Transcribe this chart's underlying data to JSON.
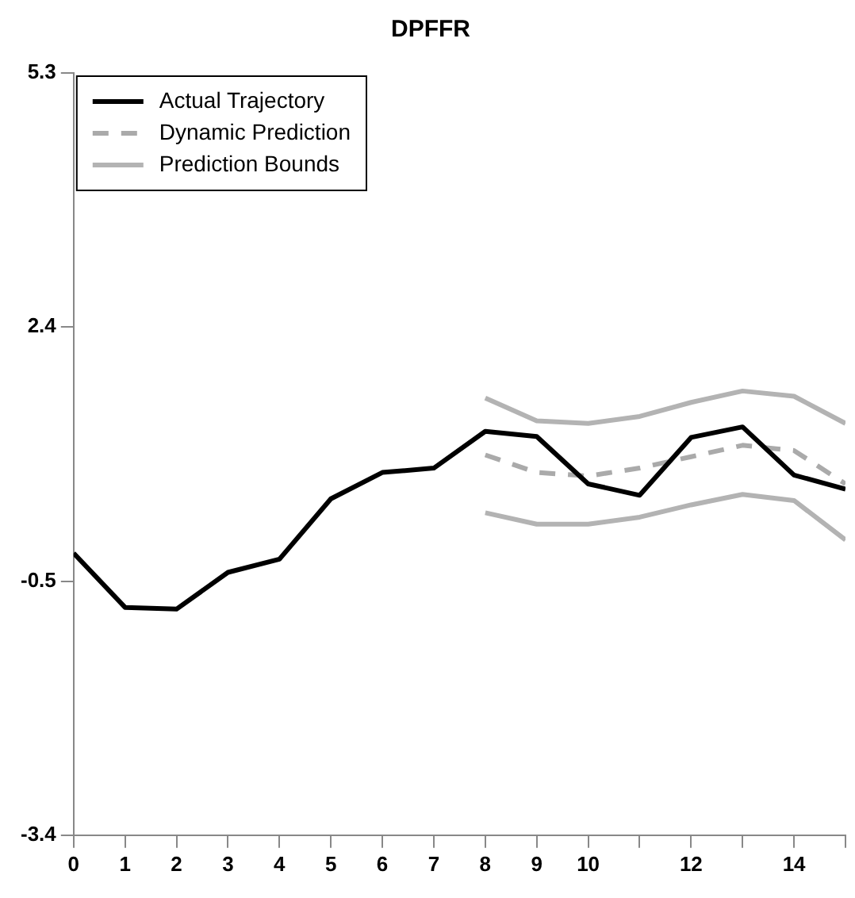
{
  "chart_data": {
    "type": "line",
    "title": "DPFFR",
    "x": [
      0,
      1,
      2,
      3,
      4,
      5,
      6,
      7,
      8,
      9,
      10,
      11,
      12,
      13,
      14,
      15
    ],
    "series": [
      {
        "name": "Actual Trajectory",
        "color": "#000000",
        "line_style": "solid",
        "values": [
          -0.18,
          -0.8,
          -0.82,
          -0.4,
          -0.25,
          0.44,
          0.74,
          0.79,
          1.21,
          1.15,
          0.61,
          0.48,
          1.14,
          1.26,
          0.71,
          0.55
        ]
      },
      {
        "name": "Dynamic Prediction",
        "color": "#aaaaaa",
        "line_style": "dashed",
        "values": [
          null,
          null,
          null,
          null,
          null,
          null,
          null,
          null,
          0.94,
          0.74,
          0.7,
          0.79,
          0.92,
          1.05,
          0.99,
          0.61
        ]
      },
      {
        "name": "Prediction Bounds",
        "color": "#b3b3b3",
        "line_style": "solid",
        "values": [
          null,
          null,
          null,
          null,
          null,
          null,
          null,
          null,
          1.59,
          1.33,
          1.3,
          1.38,
          1.54,
          1.67,
          1.61,
          1.3
        ]
      },
      {
        "color": "#b3b3b3",
        "line_style": "solid",
        "values": [
          null,
          null,
          null,
          null,
          null,
          null,
          null,
          null,
          0.28,
          0.15,
          0.15,
          0.23,
          0.37,
          0.49,
          0.42,
          -0.03
        ]
      }
    ],
    "xlim": [
      0,
      15
    ],
    "xticks": [
      0,
      1,
      2,
      3,
      4,
      5,
      6,
      7,
      8,
      9,
      10,
      {
        "value": 11,
        "label": null
      },
      12,
      {
        "value": 13,
        "label": null
      },
      14,
      {
        "value": 15,
        "label": null
      }
    ],
    "ylim": [
      -3.4,
      5.3
    ],
    "yticks": [
      -3.4,
      -0.5,
      2.4,
      5.3
    ],
    "grid": false,
    "legend": "top left",
    "marker": "none"
  }
}
